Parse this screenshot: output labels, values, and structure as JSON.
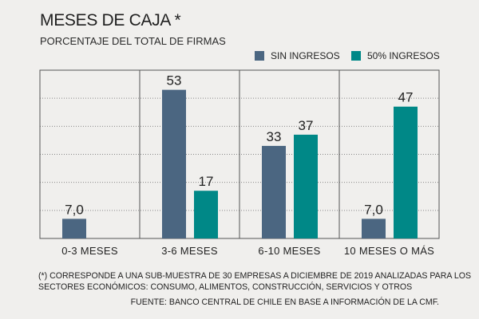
{
  "title": "MESES DE CAJA *",
  "subtitle": "PORCENTAJE DEL TOTAL DE FIRMAS",
  "colors": {
    "series_a": "#4b6681",
    "series_b": "#008887",
    "grid": "#888888",
    "frame": "#555555"
  },
  "chart_data": {
    "type": "bar",
    "categories": [
      "0-3 MESES",
      "3-6 MESES",
      "6-10 MESES",
      "10 MESES O MÁS"
    ],
    "series": [
      {
        "name": "SIN INGRESOS",
        "values": [
          7.0,
          53,
          33,
          7.0
        ],
        "labels": [
          "7,0",
          "53",
          "33",
          "7,0"
        ]
      },
      {
        "name": "50% INGRESOS",
        "values": [
          null,
          17,
          37,
          47
        ],
        "labels": [
          "",
          "17",
          "37",
          "47"
        ]
      }
    ],
    "ylim": [
      0,
      60
    ],
    "grid": true,
    "legend": "top-right"
  },
  "notes": [
    "(*) CORRESPONDE A UNA SUB-MUESTRA DE 30 EMPRESAS A DICIEMBRE DE 2019 ANALIZADAS PARA LOS",
    "SECTORES ECONÓMICOS: CONSUMO, ALIMENTOS, CONSTRUCCIÓN, SERVICIOS Y OTROS"
  ],
  "source": "FUENTE: BANCO CENTRAL DE CHILE EN BASE A INFORMACIÓN DE LA CMF."
}
